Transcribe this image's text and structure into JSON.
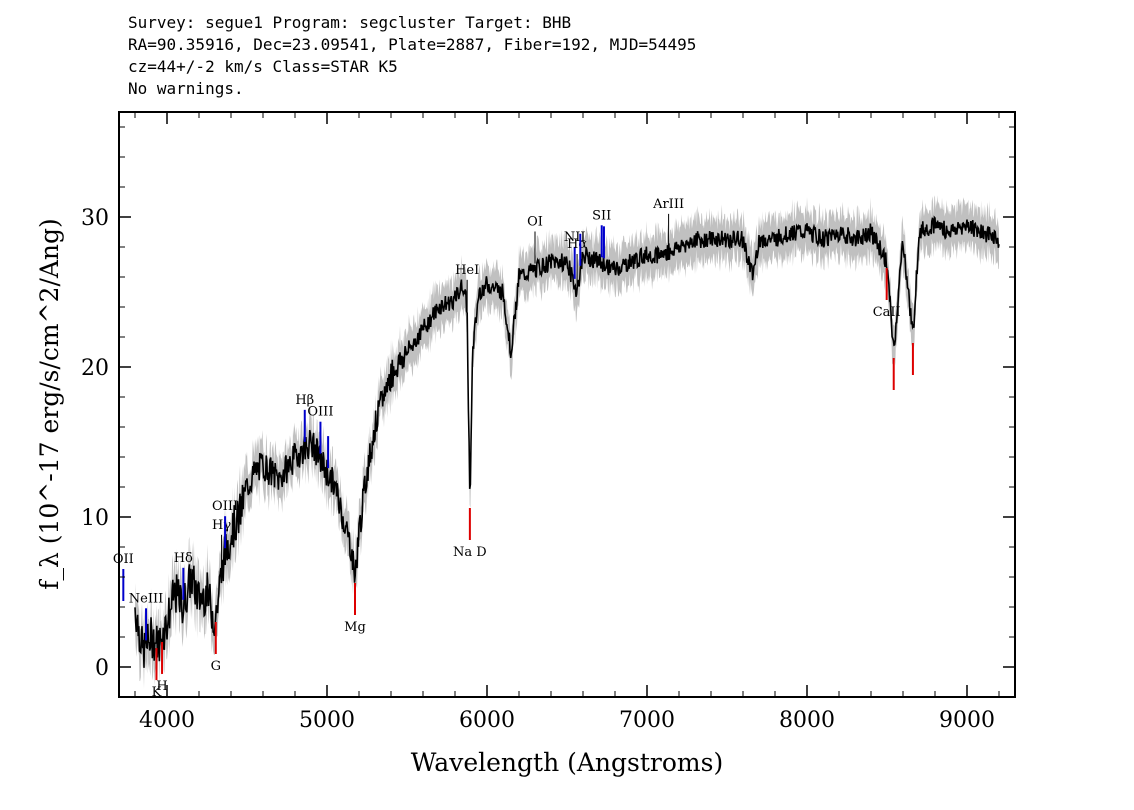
{
  "header": {
    "line1": "Survey: segue1 Program: segcluster Target: BHB",
    "line2": "RA=90.35916, Dec=23.09541, Plate=2887, Fiber=192, MJD=54495",
    "line3": "cz=44+/-2 km/s Class=STAR K5",
    "line4": "No warnings."
  },
  "chart_data": {
    "type": "line",
    "xlabel": "Wavelength (Angstroms)",
    "ylabel": "f_λ (10^-17 erg/s/cm^2/Ang)",
    "xlim": [
      3700,
      9300
    ],
    "ylim": [
      -2,
      37
    ],
    "xticks": [
      4000,
      5000,
      6000,
      7000,
      8000,
      9000
    ],
    "yticks": [
      0,
      10,
      20,
      30
    ],
    "colors": {
      "flux": "#000000",
      "error_band": "#c0c0c0",
      "emission": "#0000cc",
      "absorption": "#dd0000",
      "sky": "#000000"
    },
    "series": [
      {
        "x": [
          3800,
          3850,
          3900,
          3950,
          4000,
          4050,
          4100,
          4150,
          4200,
          4250,
          4300,
          4350,
          4400,
          4450,
          4500,
          4550,
          4600,
          4700,
          4800,
          4900,
          4950,
          5000,
          5050,
          5100,
          5150,
          5175,
          5200,
          5250,
          5300,
          5350,
          5400,
          5500,
          5600,
          5700,
          5800,
          5850,
          5875,
          5893,
          5910,
          5950,
          6000,
          6100,
          6150,
          6200,
          6300,
          6400,
          6500,
          6563,
          6600,
          6700,
          6800,
          6900,
          7000,
          7100,
          7200,
          7300,
          7400,
          7500,
          7600,
          7660,
          7700,
          7800,
          7900,
          8000,
          8100,
          8200,
          8300,
          8400,
          8498,
          8542,
          8600,
          8662,
          8700,
          8800,
          8900,
          9000,
          9100,
          9200
        ],
        "y": [
          4,
          1,
          2,
          1.5,
          3,
          5,
          4,
          6,
          4.5,
          5,
          3,
          7,
          9,
          10,
          12,
          13,
          13.5,
          12.5,
          14,
          15,
          14,
          13,
          12,
          10,
          8,
          6,
          9,
          13,
          16,
          18,
          19.5,
          21,
          22.5,
          24,
          24.5,
          25.5,
          24,
          11,
          21,
          25,
          25.5,
          25,
          21,
          26,
          26.5,
          27,
          27,
          25,
          27.5,
          27,
          26.5,
          27,
          27.5,
          27.5,
          28,
          28.5,
          28.5,
          28.5,
          28.5,
          26,
          28.5,
          28.5,
          29,
          29,
          28.5,
          29,
          28.5,
          29,
          27,
          21,
          28.5,
          22,
          29,
          29.5,
          29,
          29.5,
          29,
          28.5
        ]
      }
    ],
    "line_markers": [
      {
        "label": "OII",
        "wave": 3727,
        "kind": "emission"
      },
      {
        "label": "NeIII",
        "wave": 3869,
        "kind": "emission"
      },
      {
        "label": "K",
        "wave": 3934,
        "kind": "absorption"
      },
      {
        "label": "H",
        "wave": 3969,
        "kind": "absorption"
      },
      {
        "label": "Hδ",
        "wave": 4102,
        "kind": "emission"
      },
      {
        "label": "G",
        "wave": 4305,
        "kind": "absorption"
      },
      {
        "label": "Hγ",
        "wave": 4341,
        "kind": "sky"
      },
      {
        "label": "OIII",
        "wave": 4363,
        "kind": "emission"
      },
      {
        "label": "Hβ",
        "wave": 4861,
        "kind": "emission"
      },
      {
        "label": "OIII",
        "wave": 4959,
        "kind": "emission"
      },
      {
        "label": "",
        "wave": 5007,
        "kind": "emission"
      },
      {
        "label": "Mg",
        "wave": 5175,
        "kind": "absorption"
      },
      {
        "label": "HeI",
        "wave": 5876,
        "kind": "sky"
      },
      {
        "label": "Na D",
        "wave": 5893,
        "kind": "absorption"
      },
      {
        "label": "OI",
        "wave": 6300,
        "kind": "sky"
      },
      {
        "label": "NII",
        "wave": 6548,
        "kind": "emission"
      },
      {
        "label": "Hα",
        "wave": 6563,
        "kind": "sky"
      },
      {
        "label": "",
        "wave": 6583,
        "kind": "emission"
      },
      {
        "label": "SII",
        "wave": 6717,
        "kind": "emission"
      },
      {
        "label": "",
        "wave": 6731,
        "kind": "emission"
      },
      {
        "label": "ArIII",
        "wave": 7135,
        "kind": "sky"
      },
      {
        "label": "CaII",
        "wave": 8498,
        "kind": "absorption"
      },
      {
        "label": "",
        "wave": 8542,
        "kind": "absorption"
      },
      {
        "label": "",
        "wave": 8662,
        "kind": "absorption"
      }
    ]
  }
}
